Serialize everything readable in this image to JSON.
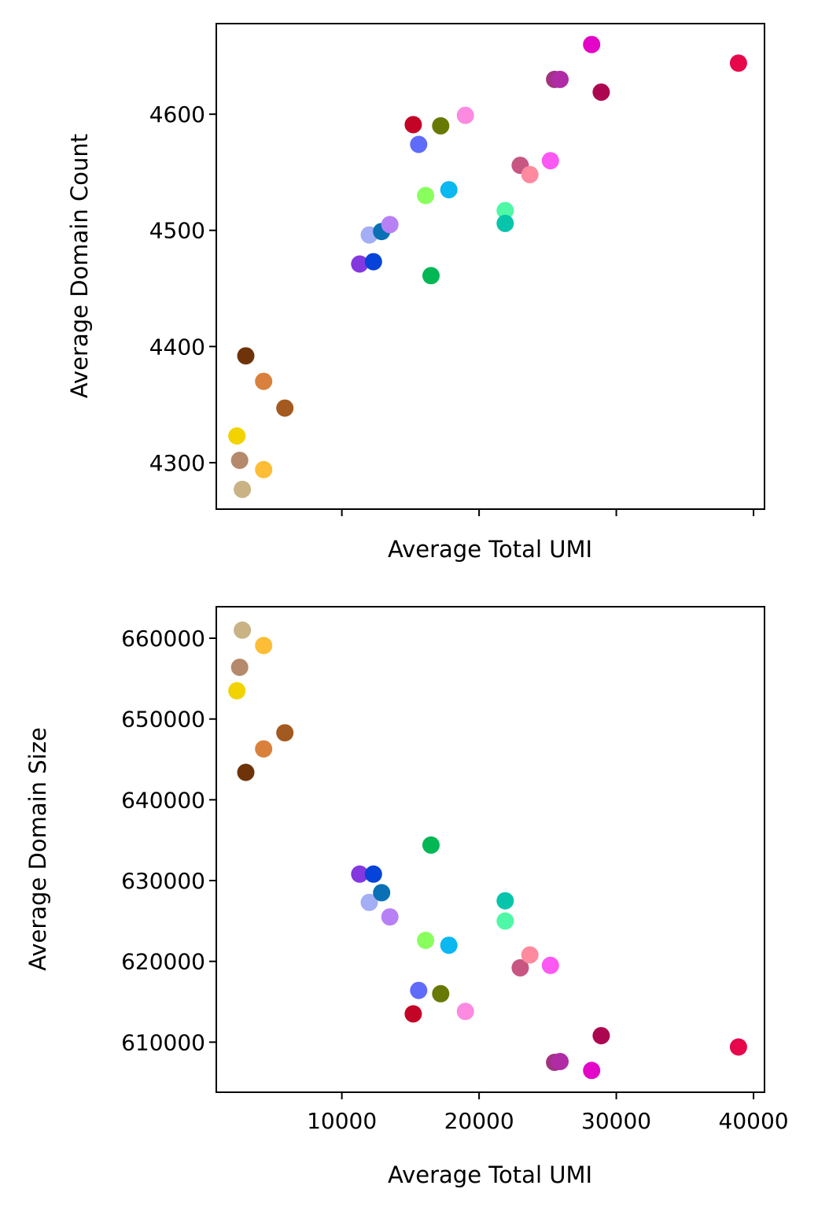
{
  "chart_data": [
    {
      "type": "scatter",
      "title": "",
      "xlabel": "Average Total UMI",
      "ylabel": "Average Domain Count",
      "xlim": [
        850,
        40800
      ],
      "ylim": [
        4260,
        4678
      ],
      "xticks": [
        10000,
        20000,
        30000,
        40000
      ],
      "xtick_labels_visible": false,
      "yticks": [
        4300,
        4400,
        4500,
        4600
      ],
      "grid": false,
      "legend": "none",
      "points": [
        {
          "x": 2350,
          "y": 4323,
          "color": "#f2d300"
        },
        {
          "x": 2550,
          "y": 4302,
          "color": "#b5896b"
        },
        {
          "x": 2750,
          "y": 4277,
          "color": "#c9b385"
        },
        {
          "x": 3000,
          "y": 4392,
          "color": "#6e3308"
        },
        {
          "x": 4300,
          "y": 4370,
          "color": "#d9813c"
        },
        {
          "x": 4300,
          "y": 4294,
          "color": "#fdbd36"
        },
        {
          "x": 5850,
          "y": 4347,
          "color": "#a35a20"
        },
        {
          "x": 11300,
          "y": 4471,
          "color": "#8338e0"
        },
        {
          "x": 12000,
          "y": 4496,
          "color": "#a3aef5"
        },
        {
          "x": 12300,
          "y": 4473,
          "color": "#0543d9"
        },
        {
          "x": 12900,
          "y": 4499,
          "color": "#0970b5"
        },
        {
          "x": 13500,
          "y": 4505,
          "color": "#b781f5"
        },
        {
          "x": 15200,
          "y": 4591,
          "color": "#c40426"
        },
        {
          "x": 15600,
          "y": 4574,
          "color": "#5f6cfa"
        },
        {
          "x": 16100,
          "y": 4530,
          "color": "#89ff5e"
        },
        {
          "x": 16500,
          "y": 4461,
          "color": "#03b754"
        },
        {
          "x": 17200,
          "y": 4590,
          "color": "#687903"
        },
        {
          "x": 17800,
          "y": 4535,
          "color": "#0bb8ef"
        },
        {
          "x": 19000,
          "y": 4599,
          "color": "#fb8ae0"
        },
        {
          "x": 21900,
          "y": 4517,
          "color": "#4ff8a6"
        },
        {
          "x": 21900,
          "y": 4506,
          "color": "#06c5ab"
        },
        {
          "x": 23000,
          "y": 4556,
          "color": "#c75682"
        },
        {
          "x": 23700,
          "y": 4548,
          "color": "#fe8a9f"
        },
        {
          "x": 25200,
          "y": 4560,
          "color": "#fb58f4"
        },
        {
          "x": 25500,
          "y": 4630,
          "color": "#a23383"
        },
        {
          "x": 25900,
          "y": 4630,
          "color": "#b02ba6"
        },
        {
          "x": 28200,
          "y": 4660,
          "color": "#e306c8"
        },
        {
          "x": 28900,
          "y": 4619,
          "color": "#ad0651"
        },
        {
          "x": 38900,
          "y": 4644,
          "color": "#e6084b"
        }
      ]
    },
    {
      "type": "scatter",
      "title": "",
      "xlabel": "Average Total UMI",
      "ylabel": "Average Domain Size",
      "xlim": [
        850,
        40800
      ],
      "ylim": [
        603800,
        663900
      ],
      "xticks": [
        10000,
        20000,
        30000,
        40000
      ],
      "xtick_labels_visible": true,
      "yticks": [
        610000,
        620000,
        630000,
        640000,
        650000,
        660000
      ],
      "grid": false,
      "legend": "none",
      "points": [
        {
          "x": 2350,
          "y": 653500,
          "color": "#f2d300"
        },
        {
          "x": 2550,
          "y": 656400,
          "color": "#b5896b"
        },
        {
          "x": 2750,
          "y": 661000,
          "color": "#c9b385"
        },
        {
          "x": 3000,
          "y": 643400,
          "color": "#6e3308"
        },
        {
          "x": 4300,
          "y": 646300,
          "color": "#d9813c"
        },
        {
          "x": 4300,
          "y": 659100,
          "color": "#fdbd36"
        },
        {
          "x": 5850,
          "y": 648300,
          "color": "#a35a20"
        },
        {
          "x": 11300,
          "y": 630800,
          "color": "#8338e0"
        },
        {
          "x": 12000,
          "y": 627300,
          "color": "#a3aef5"
        },
        {
          "x": 12300,
          "y": 630800,
          "color": "#0543d9"
        },
        {
          "x": 12900,
          "y": 628500,
          "color": "#0970b5"
        },
        {
          "x": 13500,
          "y": 625500,
          "color": "#b781f5"
        },
        {
          "x": 15200,
          "y": 613500,
          "color": "#c40426"
        },
        {
          "x": 15600,
          "y": 616400,
          "color": "#5f6cfa"
        },
        {
          "x": 16100,
          "y": 622600,
          "color": "#89ff5e"
        },
        {
          "x": 16500,
          "y": 634400,
          "color": "#03b754"
        },
        {
          "x": 17200,
          "y": 616000,
          "color": "#687903"
        },
        {
          "x": 17800,
          "y": 622000,
          "color": "#0bb8ef"
        },
        {
          "x": 19000,
          "y": 613800,
          "color": "#fb8ae0"
        },
        {
          "x": 21900,
          "y": 625000,
          "color": "#4ff8a6"
        },
        {
          "x": 21900,
          "y": 627500,
          "color": "#06c5ab"
        },
        {
          "x": 23000,
          "y": 619200,
          "color": "#c75682"
        },
        {
          "x": 23700,
          "y": 620800,
          "color": "#fe8a9f"
        },
        {
          "x": 25200,
          "y": 619500,
          "color": "#fb58f4"
        },
        {
          "x": 25500,
          "y": 607500,
          "color": "#a23383"
        },
        {
          "x": 25900,
          "y": 607600,
          "color": "#b02ba6"
        },
        {
          "x": 28200,
          "y": 606500,
          "color": "#e306c8"
        },
        {
          "x": 28900,
          "y": 610800,
          "color": "#ad0651"
        },
        {
          "x": 38900,
          "y": 609400,
          "color": "#e6084b"
        }
      ]
    }
  ]
}
